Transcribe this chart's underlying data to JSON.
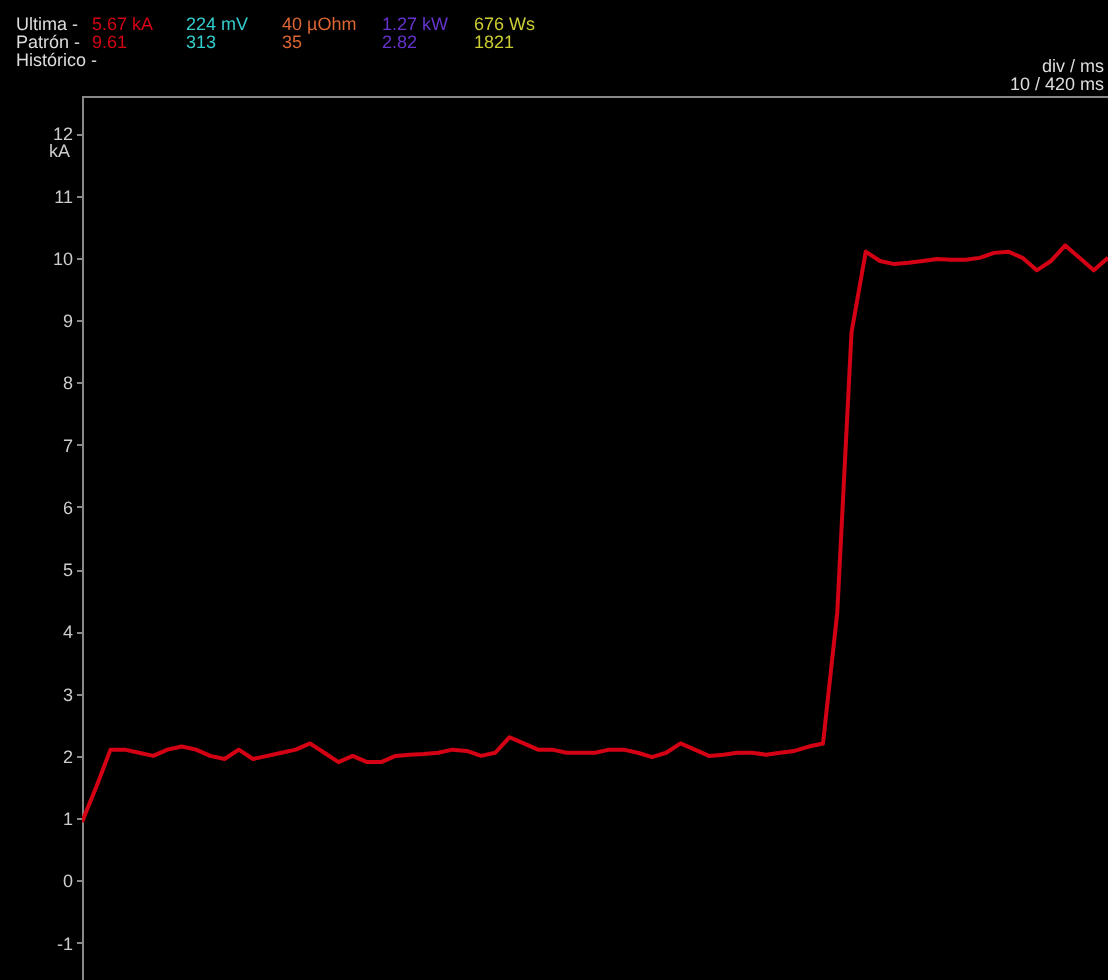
{
  "chart_data": {
    "type": "line",
    "ylabel": "kA",
    "categories": [
      null,
      null,
      null,
      null,
      null,
      null,
      null,
      null,
      null,
      null,
      null,
      null,
      null,
      null,
      null,
      null,
      null,
      null,
      null,
      null,
      null,
      null,
      null,
      null,
      null,
      null,
      null,
      null,
      null,
      null,
      null,
      null,
      null,
      null,
      null,
      null,
      null,
      null,
      null,
      null,
      null,
      null,
      null,
      null,
      null,
      null,
      null,
      null,
      null,
      null,
      null,
      null,
      null,
      null,
      null,
      null,
      null,
      null,
      null,
      null,
      null,
      null,
      null,
      null,
      null,
      null,
      null,
      null,
      null,
      null,
      null,
      null,
      null
    ],
    "series": [
      {
        "color": "#d40014",
        "values": [
          0.94,
          1.5,
          2.1,
          2.1,
          2.05,
          2.0,
          2.1,
          2.15,
          2.1,
          2.0,
          1.95,
          2.1,
          1.95,
          2.0,
          2.05,
          2.1,
          2.2,
          2.05,
          1.9,
          2.0,
          1.9,
          1.9,
          2.0,
          2.02,
          2.03,
          2.05,
          2.1,
          2.08,
          2.0,
          2.05,
          2.3,
          2.2,
          2.1,
          2.1,
          2.05,
          2.05,
          2.05,
          2.1,
          2.1,
          2.05,
          1.98,
          2.05,
          2.2,
          2.1,
          2.0,
          2.02,
          2.05,
          2.05,
          2.02,
          2.05,
          2.08,
          2.15,
          2.2,
          4.3,
          8.8,
          10.1,
          9.95,
          9.9,
          9.92,
          9.95,
          9.98,
          9.97,
          9.97,
          10.0,
          10.08,
          10.1,
          10.0,
          9.8,
          9.95,
          10.2,
          10.0,
          9.8,
          10.0
        ]
      }
    ],
    "ylim": [
      -1.6,
      12.6
    ],
    "yticks": [
      -1,
      0,
      1,
      2,
      3,
      4,
      5,
      6,
      7,
      8,
      9,
      10,
      11,
      12
    ],
    "tick_labels": "y",
    "grid": false,
    "legend": false,
    "marker": "none",
    "line_style": "solid",
    "annotations": [
      "Ultima -",
      "5.67 kA",
      "224 mV",
      "40 µOhm",
      "1.27 kW",
      "676 Ws",
      "Patrón -",
      "9.61",
      "313",
      "35",
      "2.82",
      "1821",
      "Histórico -",
      "div / ms",
      "10 / 420 ms"
    ]
  }
}
